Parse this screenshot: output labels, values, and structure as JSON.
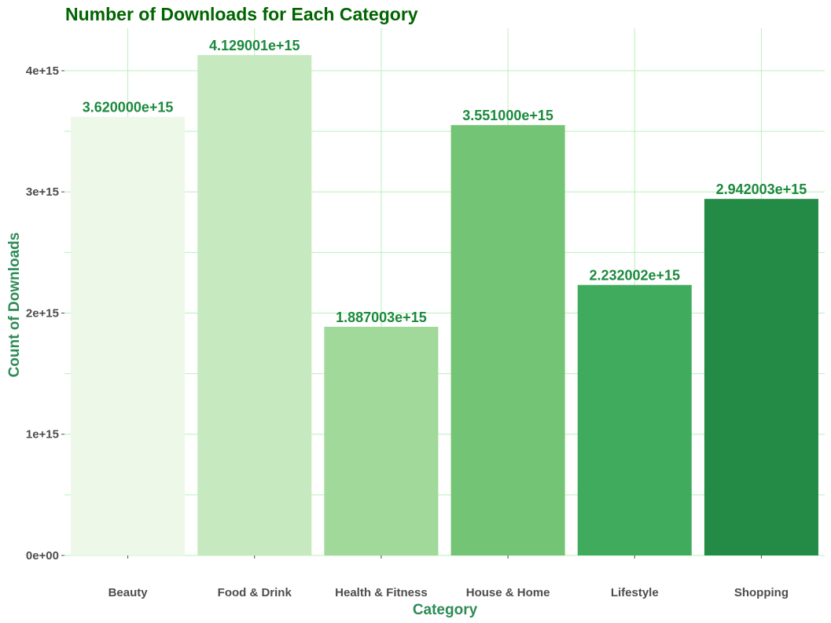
{
  "chart_data": {
    "type": "bar",
    "title": "Number of Downloads for Each Category",
    "xlabel": "Category",
    "ylabel": "Count of Downloads",
    "categories": [
      "Beauty",
      "Food & Drink",
      "Health & Fitness",
      "House & Home",
      "Lifestyle",
      "Shopping"
    ],
    "values": [
      3620000000000000.0,
      4129001000000000.0,
      1887003000000000.0,
      3551000000000000.0,
      2232002000000000.0,
      2942003000000000.0
    ],
    "data_labels": [
      "3.620000e+15",
      "4.129001e+15",
      "1.887003e+15",
      "3.551000e+15",
      "2.232002e+15",
      "2.942003e+15"
    ],
    "bar_colors": [
      "#edf8e9",
      "#c7e9c0",
      "#a1d99b",
      "#74c476",
      "#41ab5d",
      "#238b45"
    ],
    "ylim": [
      0,
      4350000000000000.0
    ],
    "yticks": [
      0,
      1000000000000000.0,
      2000000000000000.0,
      3000000000000000.0,
      4000000000000000.0
    ],
    "ytick_labels": [
      "0e+00",
      "1e+15",
      "2e+15",
      "3e+15",
      "4e+15"
    ],
    "grid": true,
    "legend": "none",
    "colors": {
      "title": "#006400",
      "axis_title": "#2e8b57",
      "data_label": "#1b8a3e",
      "grid": "#b8f0b8",
      "tick": "#4d4d4d"
    }
  }
}
